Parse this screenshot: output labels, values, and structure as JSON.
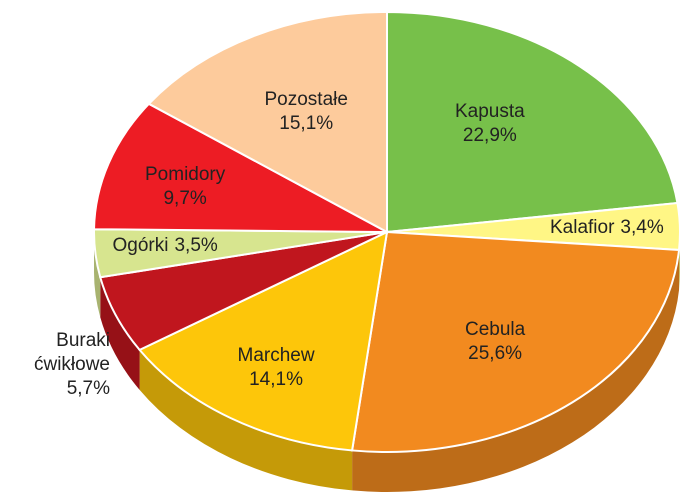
{
  "chart_data": {
    "type": "pie",
    "categories": [
      "Kapusta",
      "Kalafior",
      "Cebula",
      "Marchew",
      "Buraki ćwikłowe",
      "Ogórki",
      "Pomidory",
      "Pozostałe"
    ],
    "values": [
      22.9,
      3.4,
      25.6,
      14.1,
      5.7,
      3.5,
      9.7,
      15.1
    ],
    "value_labels": [
      "22,9%",
      "3,4%",
      "25,6%",
      "14,1%",
      "5,7%",
      "3,5%",
      "9,7%",
      "15,1%"
    ],
    "colors": [
      "#77c04a",
      "#fff685",
      "#f28a1f",
      "#fdc60a",
      "#c0161e",
      "#d7e58f",
      "#ed1c24",
      "#fdcb9c"
    ]
  }
}
